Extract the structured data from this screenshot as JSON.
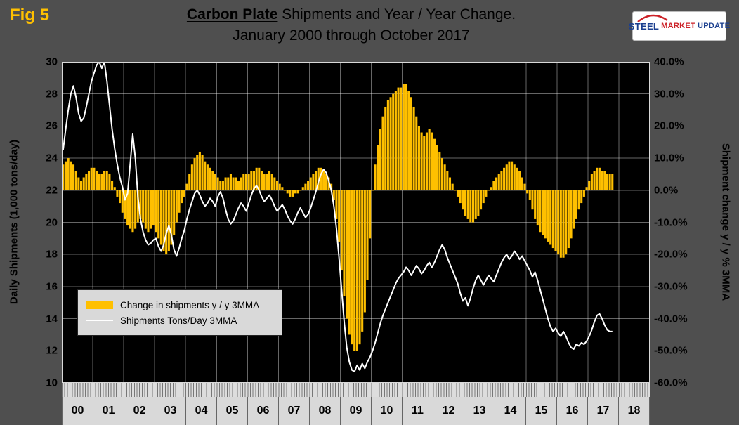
{
  "fig_label": "Fig 5",
  "title": {
    "emphasis": "Carbon Plate",
    "rest": " Shipments and Year / Year Change.",
    "line2": "January 2000 through October 2017"
  },
  "logo": {
    "word1": "STEEL",
    "word2": "MARKET",
    "word3": "UPDATE"
  },
  "colors": {
    "bar": "#FFC000",
    "line": "#FFFFFF",
    "plot_bg": "#000000",
    "page_bg": "#4F4F4F",
    "fig_label": "#FFC000",
    "grid": "#FFFFFF"
  },
  "left_axis": {
    "title": "Daily Shipments (1,000 tons/day)",
    "ticks": [
      30,
      28,
      26,
      24,
      22,
      20,
      18,
      16,
      14,
      12,
      10
    ],
    "min": 10,
    "max": 30
  },
  "right_axis": {
    "title": "Shipment change y / y % 3MMA",
    "ticks": [
      "40.0%",
      "30.0%",
      "20.0%",
      "10.0%",
      "0.0%",
      "-10.0%",
      "-20.0%",
      "-30.0%",
      "-40.0%",
      "-50.0%",
      "-60.0%"
    ],
    "min": -60,
    "max": 40
  },
  "x_axis": {
    "year_labels": [
      "00",
      "01",
      "02",
      "03",
      "04",
      "05",
      "06",
      "07",
      "08",
      "09",
      "10",
      "11",
      "12",
      "13",
      "14",
      "15",
      "16",
      "17",
      "18"
    ]
  },
  "legend": {
    "items": [
      {
        "swatch": "bar",
        "label": "Change in shipments y / y 3MMA"
      },
      {
        "swatch": "line",
        "label": "Shipments Tons/Day 3MMA"
      }
    ]
  },
  "chart_data": {
    "type": "combo",
    "title": "Carbon Plate Shipments and Year / Year Change. January 2000 through October 2017",
    "x_start": "2000-01",
    "x_end": "2017-10",
    "ylabel_left": "Daily Shipments (1,000 tons/day)",
    "ylabel_right": "Shipment change y / y % 3MMA",
    "ylim_left": [
      10,
      30
    ],
    "ylim_right": [
      -60,
      40
    ],
    "grid": true,
    "legend_position": "middle-left",
    "series": [
      {
        "name": "Change in shipments y / y 3MMA",
        "type": "bar",
        "axis": "right",
        "unit": "%",
        "values": [
          8,
          9,
          10,
          9,
          8,
          6,
          4,
          3,
          4,
          5,
          6,
          7,
          7,
          6,
          5,
          5,
          6,
          6,
          5,
          3,
          1,
          -2,
          -4,
          -7,
          -9,
          -11,
          -12,
          -13,
          -12,
          -10,
          -9,
          -10,
          -12,
          -13,
          -12,
          -11,
          -13,
          -15,
          -17,
          -19,
          -20,
          -19,
          -17,
          -14,
          -10,
          -7,
          -4,
          -2,
          2,
          5,
          8,
          10,
          11,
          12,
          11,
          9,
          8,
          7,
          6,
          5,
          4,
          3,
          3,
          4,
          4,
          5,
          4,
          4,
          3,
          4,
          5,
          5,
          5,
          6,
          6,
          7,
          7,
          6,
          5,
          5,
          6,
          5,
          4,
          3,
          2,
          1,
          0,
          -1,
          -2,
          -2,
          -1,
          -1,
          0,
          1,
          2,
          3,
          4,
          5,
          6,
          7,
          7,
          6,
          5,
          4,
          2,
          -3,
          -9,
          -16,
          -25,
          -33,
          -40,
          -45,
          -48,
          -50,
          -50,
          -48,
          -44,
          -38,
          -28,
          -15,
          0,
          8,
          14,
          19,
          23,
          26,
          28,
          29,
          30,
          31,
          32,
          32,
          33,
          33,
          31,
          29,
          26,
          23,
          20,
          18,
          17,
          18,
          19,
          18,
          16,
          14,
          12,
          10,
          8,
          6,
          4,
          2,
          0,
          -2,
          -4,
          -6,
          -8,
          -9,
          -10,
          -10,
          -9,
          -8,
          -6,
          -4,
          -2,
          0,
          1,
          3,
          4,
          5,
          6,
          7,
          8,
          9,
          9,
          8,
          7,
          6,
          4,
          2,
          -1,
          -3,
          -6,
          -9,
          -11,
          -13,
          -14,
          -15,
          -16,
          -17,
          -18,
          -19,
          -20,
          -21,
          -21,
          -20,
          -18,
          -15,
          -12,
          -9,
          -6,
          -4,
          -2,
          1,
          3,
          5,
          6,
          7,
          7,
          6,
          6,
          5,
          5,
          5
        ]
      },
      {
        "name": "Shipments Tons/Day 3MMA",
        "type": "line",
        "axis": "left",
        "unit": "1,000 tons/day",
        "values": [
          24.5,
          25.8,
          27.0,
          28.0,
          28.5,
          27.8,
          26.8,
          26.3,
          26.5,
          27.2,
          28.0,
          28.8,
          29.3,
          29.8,
          30.0,
          29.6,
          30.0,
          28.8,
          27.3,
          25.8,
          24.6,
          23.6,
          22.8,
          22.2,
          21.4,
          21.8,
          23.6,
          25.5,
          24.0,
          21.6,
          20.2,
          19.4,
          18.9,
          18.6,
          18.7,
          18.9,
          19.0,
          18.5,
          18.2,
          18.6,
          19.3,
          19.8,
          19.2,
          18.3,
          17.9,
          18.4,
          19.0,
          19.5,
          20.2,
          20.8,
          21.3,
          21.8,
          22.0,
          21.7,
          21.3,
          21.0,
          21.2,
          21.5,
          21.3,
          21.0,
          21.6,
          21.9,
          21.5,
          20.8,
          20.2,
          19.9,
          20.1,
          20.5,
          20.9,
          21.2,
          21.0,
          20.7,
          21.2,
          21.7,
          22.1,
          22.3,
          22.0,
          21.6,
          21.3,
          21.5,
          21.7,
          21.4,
          21.0,
          20.7,
          20.9,
          21.1,
          20.8,
          20.4,
          20.1,
          19.9,
          20.2,
          20.6,
          20.9,
          20.6,
          20.3,
          20.5,
          20.9,
          21.4,
          21.9,
          22.5,
          23.0,
          23.3,
          23.1,
          22.6,
          22.0,
          21.0,
          19.6,
          17.8,
          15.8,
          13.8,
          12.2,
          11.3,
          10.8,
          10.7,
          11.1,
          10.8,
          11.2,
          10.9,
          11.3,
          11.6,
          12.0,
          12.5,
          13.1,
          13.7,
          14.2,
          14.6,
          15.0,
          15.4,
          15.8,
          16.2,
          16.5,
          16.7,
          16.9,
          17.2,
          17.0,
          16.7,
          17.0,
          17.3,
          17.1,
          16.8,
          17.0,
          17.3,
          17.5,
          17.2,
          17.5,
          17.9,
          18.3,
          18.6,
          18.3,
          17.8,
          17.4,
          17.0,
          16.6,
          16.2,
          15.6,
          15.1,
          15.3,
          14.8,
          15.3,
          15.9,
          16.4,
          16.7,
          16.4,
          16.1,
          16.4,
          16.7,
          16.5,
          16.3,
          16.7,
          17.1,
          17.5,
          17.8,
          18.0,
          17.7,
          17.9,
          18.2,
          18.0,
          17.7,
          17.9,
          17.6,
          17.3,
          17.0,
          16.6,
          16.9,
          16.4,
          15.8,
          15.2,
          14.6,
          14.0,
          13.5,
          13.2,
          13.4,
          13.1,
          12.9,
          13.2,
          12.9,
          12.5,
          12.2,
          12.1,
          12.4,
          12.3,
          12.5,
          12.4,
          12.6,
          12.9,
          13.3,
          13.8,
          14.2,
          14.3,
          14.0,
          13.6,
          13.3,
          13.2,
          13.2
        ]
      }
    ]
  }
}
